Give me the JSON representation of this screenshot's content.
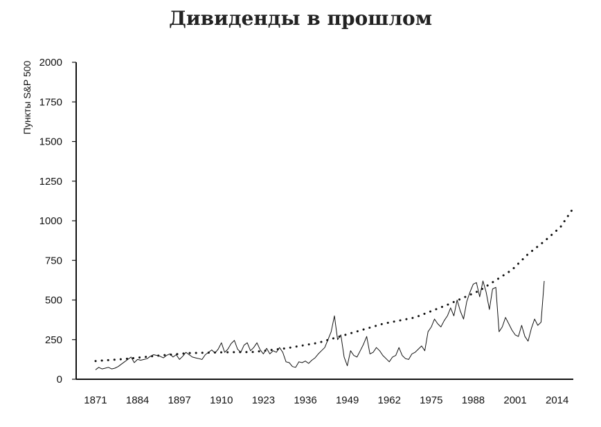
{
  "chart_data": {
    "type": "line",
    "title": "Дивиденды в прошлом",
    "ylabel": "Пункты S&P 500",
    "xlabel": "",
    "ylim": [
      0,
      2000
    ],
    "xlim": [
      1865,
      2019
    ],
    "x_ticks": [
      "1871",
      "1884",
      "1897",
      "1910",
      "1923",
      "1936",
      "1949",
      "1962",
      "1975",
      "1988",
      "2001",
      "2014"
    ],
    "y_ticks": [
      "0",
      "250",
      "500",
      "750",
      "1000",
      "1250",
      "1500",
      "1750",
      "2000"
    ],
    "grid": false,
    "legend": "none",
    "colors": {
      "line": "#111111",
      "trend": "#111111",
      "axis": "#111111",
      "title": "#222222"
    },
    "series": [
      {
        "style": "solid",
        "x": [
          1871,
          1872,
          1873,
          1874,
          1875,
          1876,
          1877,
          1878,
          1879,
          1880,
          1881,
          1882,
          1883,
          1884,
          1885,
          1886,
          1887,
          1888,
          1889,
          1890,
          1891,
          1892,
          1893,
          1894,
          1895,
          1896,
          1897,
          1898,
          1899,
          1900,
          1901,
          1902,
          1903,
          1904,
          1905,
          1906,
          1907,
          1908,
          1909,
          1910,
          1911,
          1912,
          1913,
          1914,
          1915,
          1916,
          1917,
          1918,
          1919,
          1920,
          1921,
          1922,
          1923,
          1924,
          1925,
          1926,
          1927,
          1928,
          1929,
          1930,
          1931,
          1932,
          1933,
          1934,
          1935,
          1936,
          1937,
          1938,
          1939,
          1940,
          1941,
          1942,
          1943,
          1944,
          1945,
          1946,
          1947,
          1948,
          1949,
          1950,
          1951,
          1952,
          1953,
          1954,
          1955,
          1956,
          1957,
          1958,
          1959,
          1960,
          1961,
          1962,
          1963,
          1964,
          1965,
          1966,
          1967,
          1968,
          1969,
          1970,
          1971,
          1972,
          1973,
          1974,
          1975,
          1976,
          1977,
          1978,
          1979,
          1980,
          1981,
          1982,
          1983,
          1984,
          1985,
          1986,
          1987,
          1988,
          1989,
          1990,
          1991,
          1992,
          1993,
          1994,
          1995,
          1996,
          1997,
          1998,
          1999,
          2000,
          2001,
          2002,
          2003,
          2004,
          2005,
          2006,
          2007,
          2008,
          2009,
          2010
        ],
        "y": [
          60,
          75,
          65,
          70,
          75,
          65,
          70,
          80,
          95,
          110,
          125,
          140,
          105,
          125,
          120,
          125,
          130,
          145,
          155,
          150,
          145,
          135,
          150,
          160,
          140,
          155,
          125,
          145,
          170,
          155,
          140,
          135,
          130,
          125,
          155,
          170,
          185,
          165,
          190,
          230,
          170,
          190,
          225,
          245,
          190,
          170,
          215,
          230,
          180,
          200,
          230,
          185,
          160,
          195,
          160,
          180,
          170,
          200,
          170,
          110,
          105,
          80,
          75,
          110,
          105,
          115,
          100,
          120,
          135,
          160,
          180,
          200,
          250,
          300,
          400,
          250,
          280,
          140,
          85,
          180,
          150,
          140,
          180,
          220,
          270,
          160,
          170,
          200,
          180,
          150,
          130,
          110,
          140,
          150,
          200,
          150,
          130,
          125,
          160,
          170,
          190,
          210,
          180,
          300,
          330,
          380,
          350,
          330,
          370,
          400,
          450,
          400,
          500,
          430,
          380,
          490,
          550,
          600,
          610,
          520,
          620,
          550,
          440,
          570,
          580,
          300,
          330,
          390,
          350,
          310,
          280,
          270,
          340,
          270,
          240,
          320,
          380,
          340,
          360,
          620
        ],
        "note": "solid line series"
      },
      {
        "style": "dotted",
        "x": [
          1871,
          1880,
          1890,
          1900,
          1910,
          1920,
          1930,
          1940,
          1950,
          1960,
          1970,
          1980,
          1990,
          2000,
          2005,
          2010,
          2015,
          2019
        ],
        "y": [
          115,
          128,
          148,
          165,
          170,
          172,
          195,
          230,
          290,
          350,
          390,
          470,
          560,
          690,
          790,
          870,
          960,
          1080
        ]
      }
    ]
  }
}
